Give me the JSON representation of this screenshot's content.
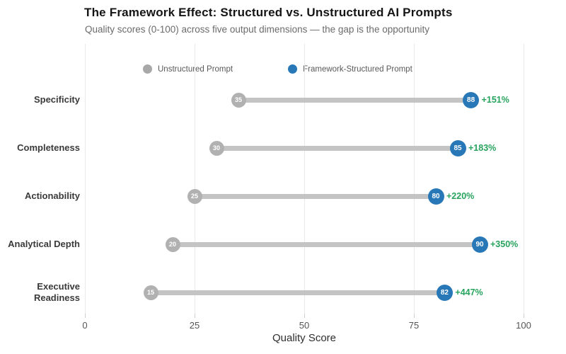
{
  "header": {
    "title": "The Framework Effect: Structured vs. Unstructured AI Prompts",
    "subtitle": "Quality scores (0-100) across five output dimensions — the gap is the opportunity"
  },
  "legend": {
    "items": [
      {
        "label": "Unstructured Prompt",
        "color": "#a8a8a8"
      },
      {
        "label": "Framework-Structured Prompt",
        "color": "#2878b8"
      }
    ]
  },
  "chart_data": {
    "type": "dumbbell",
    "categories": [
      "Specificity",
      "Completeness",
      "Actionability",
      "Analytical Depth",
      "Executive Readiness"
    ],
    "series": [
      {
        "name": "Unstructured Prompt",
        "values": [
          35,
          30,
          25,
          20,
          15
        ],
        "color": "#b1b1b1"
      },
      {
        "name": "Framework-Structured Prompt",
        "values": [
          88,
          85,
          80,
          90,
          82
        ],
        "color": "#2878b8"
      }
    ],
    "pct_change": [
      "+151%",
      "+183%",
      "+220%",
      "+350%",
      "+447%"
    ],
    "pct_color": "#27a35e",
    "connector_color": "#c4c4c4",
    "title": "The Framework Effect: Structured vs. Unstructured AI Prompts",
    "xlabel": "Quality Score",
    "xticks": [
      0,
      25,
      50,
      75,
      100
    ],
    "xlim": [
      0,
      100
    ],
    "grid": "vertical-only",
    "legend_position": "top-inside"
  }
}
